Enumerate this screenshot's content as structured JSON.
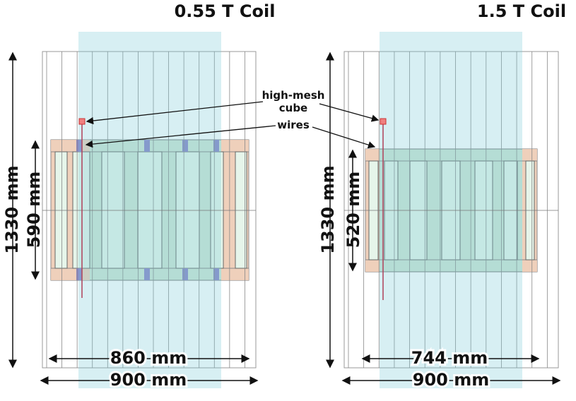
{
  "panels": [
    {
      "title": "0.55 T Coil",
      "height": "1330 mm",
      "coil_height": "590 mm",
      "inner_width": "860 mm",
      "outer_width": "900 mm"
    },
    {
      "title": "1.5 T Coil",
      "height": "1330 mm",
      "coil_height": "520 mm",
      "inner_width": "744 mm",
      "outer_width": "900 mm"
    }
  ],
  "annotations": {
    "cube": "high-mesh cube",
    "wires": "wires"
  }
}
